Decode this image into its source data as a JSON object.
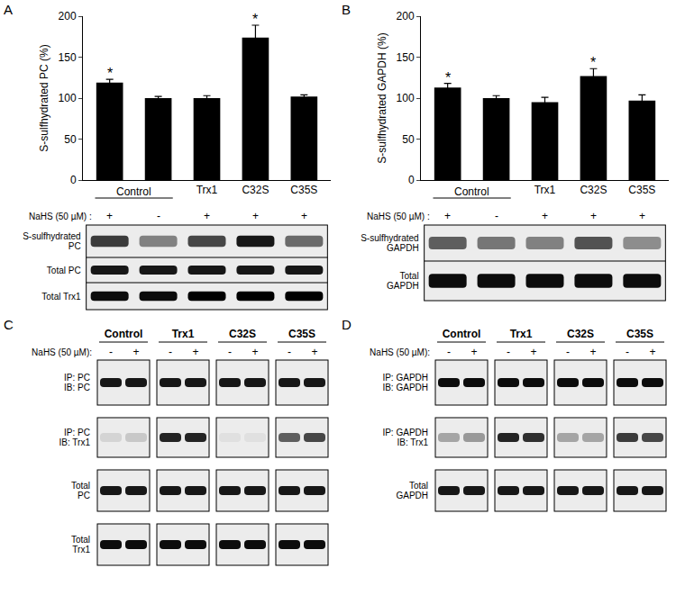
{
  "chart_data": [
    {
      "panel": "A",
      "type": "bar",
      "y_label": "S-sulfhydrated PC (%)",
      "categories": [
        null,
        null,
        "Trx1",
        "C32S",
        "C35S"
      ],
      "group_labels": [
        {
          "label": "Control",
          "from": 0,
          "to": 1
        }
      ],
      "values": [
        119,
        100,
        100,
        174,
        102
      ],
      "errors": [
        4,
        2,
        3,
        15,
        2
      ],
      "significance": [
        "*",
        null,
        null,
        "*",
        null
      ],
      "treatment": {
        "label": "NaHS (50 µM) :",
        "values": [
          "+",
          "-",
          "+",
          "+",
          "+"
        ]
      },
      "color": "#000000",
      "ylim": [
        0,
        200
      ],
      "yticks": [
        0,
        50,
        100,
        150,
        200
      ],
      "grid": false
    },
    {
      "panel": "B",
      "type": "bar",
      "y_label": "S-sulfhydrated GAPDH (%)",
      "categories": [
        null,
        null,
        "Trx1",
        "C32S",
        "C35S"
      ],
      "group_labels": [
        {
          "label": "Control",
          "from": 0,
          "to": 1
        }
      ],
      "values": [
        113,
        100,
        95,
        127,
        97
      ],
      "errors": [
        5,
        3,
        6,
        9,
        7
      ],
      "significance": [
        "*",
        null,
        null,
        "*",
        null
      ],
      "treatment": {
        "label": "NaHS (50 µM) :",
        "values": [
          "+",
          "-",
          "+",
          "+",
          "+"
        ]
      },
      "color": "#000000",
      "ylim": [
        0,
        200
      ],
      "yticks": [
        0,
        50,
        100,
        150,
        200
      ],
      "grid": false
    }
  ],
  "blots": [
    {
      "panel": "A",
      "rows": [
        {
          "label": [
            "S-sulfhydrated",
            "PC"
          ],
          "bands": [
            0.75,
            0.45,
            0.7,
            0.9,
            0.55
          ]
        },
        {
          "label": [
            "Total PC"
          ],
          "bands": [
            0.9,
            0.9,
            0.9,
            0.9,
            0.9
          ]
        },
        {
          "label": [
            "Total Trx1"
          ],
          "bands": [
            0.95,
            0.95,
            1,
            1,
            1
          ]
        }
      ]
    },
    {
      "panel": "B",
      "rows": [
        {
          "label": [
            "S-sulfhydrated",
            "GAPDH"
          ],
          "bands": [
            0.6,
            0.5,
            0.45,
            0.65,
            0.4
          ]
        },
        {
          "label": [
            "Total",
            "GAPDH"
          ],
          "bands": [
            0.95,
            0.95,
            0.95,
            0.95,
            0.95
          ]
        }
      ]
    }
  ],
  "immunoblots": [
    {
      "panel": "C",
      "groups": [
        "Control",
        "Trx1",
        "C32S",
        "C35S"
      ],
      "treatment": {
        "label": "NaHS (50 µM):",
        "values": [
          "-",
          "+",
          "-",
          "+",
          "-",
          "+",
          "-",
          "+"
        ]
      },
      "rows": [
        {
          "label": [
            "IP: PC",
            "IB: PC"
          ],
          "bands": [
            0.9,
            0.9,
            0.9,
            0.9,
            0.9,
            0.9,
            0.9,
            0.9
          ]
        },
        {
          "label": [
            "IP: PC",
            "IB: Trx1"
          ],
          "bands": [
            0.1,
            0.15,
            0.85,
            0.85,
            0.05,
            0.05,
            0.6,
            0.7
          ]
        },
        {
          "label": [
            "Total",
            "PC"
          ],
          "bands": [
            0.9,
            0.9,
            0.9,
            0.9,
            0.9,
            0.9,
            0.9,
            0.9
          ]
        },
        {
          "label": [
            "Total",
            "Trx1"
          ],
          "bands": [
            0.95,
            0.95,
            0.95,
            0.95,
            0.95,
            0.95,
            0.95,
            0.95
          ]
        }
      ]
    },
    {
      "panel": "D",
      "groups": [
        "Control",
        "Trx1",
        "C32S",
        "C35S"
      ],
      "treatment": {
        "label": "NaHS (50 µM):",
        "values": [
          "-",
          "+",
          "-",
          "+",
          "-",
          "+",
          "-",
          "+"
        ]
      },
      "rows": [
        {
          "label": [
            "IP: GAPDH",
            "IB: GAPDH"
          ],
          "bands": [
            0.95,
            0.95,
            0.95,
            0.95,
            0.95,
            0.95,
            0.95,
            0.95
          ]
        },
        {
          "label": [
            "IP: GAPDH",
            "IB: Trx1"
          ],
          "bands": [
            0.3,
            0.35,
            0.85,
            0.8,
            0.3,
            0.3,
            0.75,
            0.7
          ]
        },
        {
          "label": [
            "Total",
            "GAPDH"
          ],
          "bands": [
            0.9,
            0.9,
            0.9,
            0.9,
            0.9,
            0.9,
            0.9,
            0.9
          ]
        }
      ]
    }
  ]
}
